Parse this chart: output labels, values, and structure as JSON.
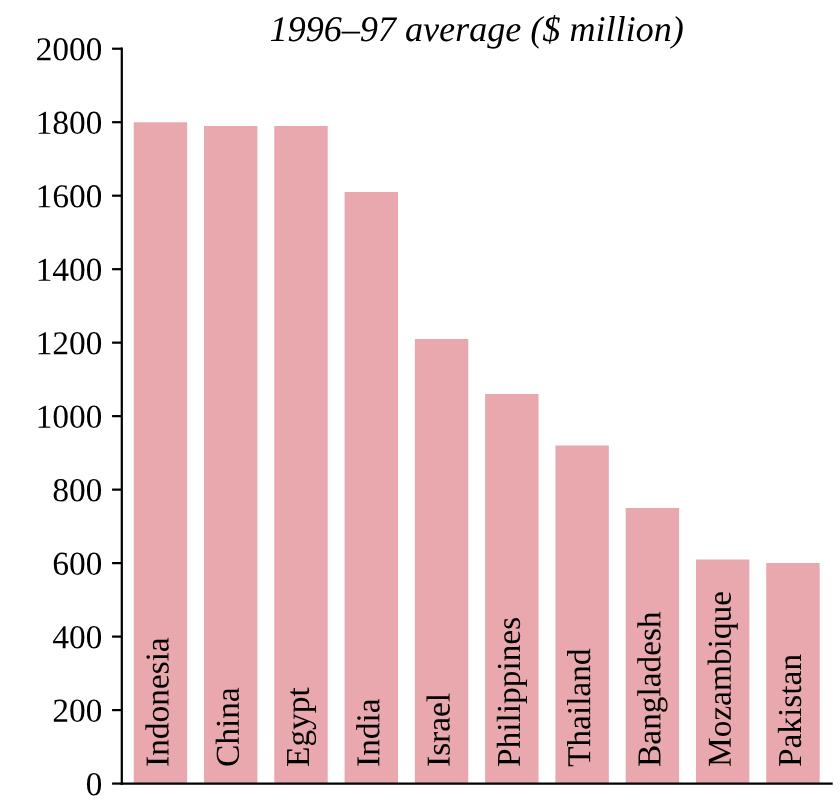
{
  "chart_data": {
    "type": "bar",
    "title": "1996–97 average ($ million)",
    "categories": [
      "Indonesia",
      "China",
      "Egypt",
      "India",
      "Israel",
      "Philippines",
      "Thailand",
      "Bangladesh",
      "Mozambique",
      "Pakistan"
    ],
    "values": [
      1800,
      1790,
      1790,
      1610,
      1210,
      1060,
      920,
      750,
      610,
      600
    ],
    "color": "#e9a7ae",
    "ylim": [
      0,
      2000
    ],
    "yticks": [
      0,
      200,
      400,
      600,
      800,
      1000,
      1200,
      1400,
      1600,
      1800,
      2000
    ],
    "grid": false,
    "legend": false
  }
}
